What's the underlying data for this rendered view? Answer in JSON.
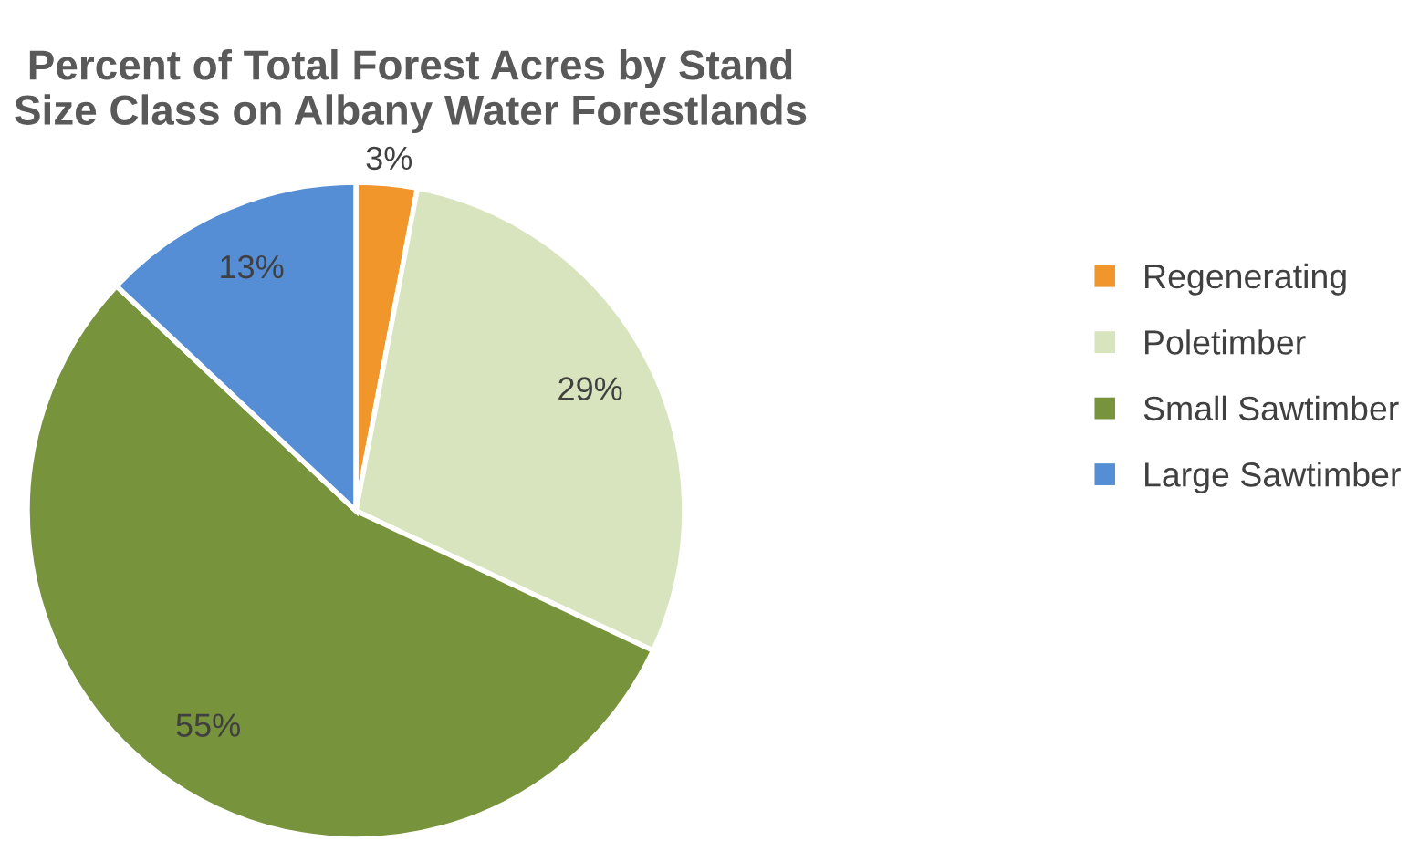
{
  "chart_data": {
    "type": "pie",
    "title": "Percent of Total Forest Acres by Stand Size Class on Albany Water Forestlands",
    "categories": [
      "Regenerating",
      "Poletimber",
      "Small Sawtimber",
      "Large Sawtimber"
    ],
    "values": [
      3,
      29,
      55,
      13
    ],
    "colors": [
      "#f0962a",
      "#d7e4bd",
      "#77933c",
      "#558ed5"
    ],
    "value_labels": [
      "3%",
      "29%",
      "55%",
      "13%"
    ],
    "legend": "right"
  }
}
